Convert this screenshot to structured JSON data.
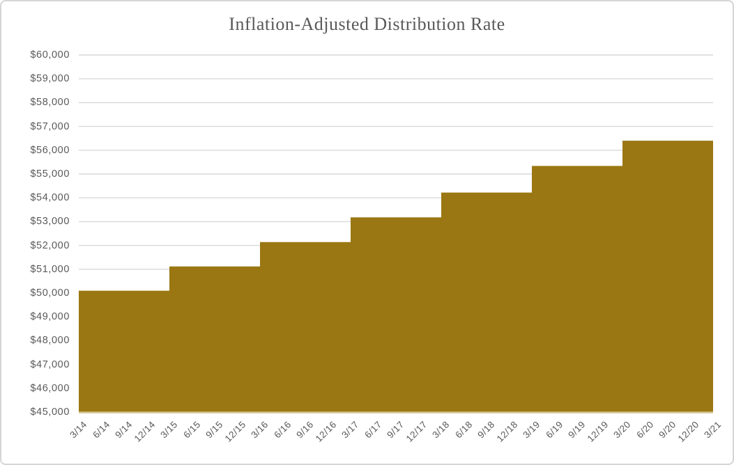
{
  "chart_data": {
    "type": "area",
    "subtype": "step",
    "title": "Inflation-Adjusted Distribution Rate",
    "xlabel": "",
    "ylabel": "",
    "legend": "none",
    "grid": "horizontal",
    "ylim": [
      45000,
      60000
    ],
    "ytick_interval": 1000,
    "yticks": [
      {
        "value": 60000,
        "label": "$60,000"
      },
      {
        "value": 59000,
        "label": "$59,000"
      },
      {
        "value": 58000,
        "label": "$58,000"
      },
      {
        "value": 57000,
        "label": "$57,000"
      },
      {
        "value": 56000,
        "label": "$56,000"
      },
      {
        "value": 55000,
        "label": "$55,000"
      },
      {
        "value": 54000,
        "label": "$54,000"
      },
      {
        "value": 53000,
        "label": "$53,000"
      },
      {
        "value": 52000,
        "label": "$52,000"
      },
      {
        "value": 51000,
        "label": "$51,000"
      },
      {
        "value": 50000,
        "label": "$50,000"
      },
      {
        "value": 49000,
        "label": "$49,000"
      },
      {
        "value": 48000,
        "label": "$48,000"
      },
      {
        "value": 47000,
        "label": "$47,000"
      },
      {
        "value": 46000,
        "label": "$46,000"
      },
      {
        "value": 45000,
        "label": "$45,000"
      }
    ],
    "categories": [
      "3/14",
      "6/14",
      "9/14",
      "12/14",
      "3/15",
      "6/15",
      "9/15",
      "12/15",
      "3/16",
      "6/16",
      "9/16",
      "12/16",
      "3/17",
      "6/17",
      "9/17",
      "12/17",
      "3/18",
      "6/18",
      "9/18",
      "12/18",
      "3/19",
      "6/19",
      "9/19",
      "12/19",
      "3/20",
      "6/20",
      "9/20",
      "12/20",
      "3/21"
    ],
    "series": [
      {
        "name": "Inflation-Adjusted Distribution Rate",
        "values": [
          50100,
          50100,
          50100,
          50100,
          51120,
          51120,
          51120,
          51120,
          52140,
          52140,
          52140,
          52140,
          53180,
          53180,
          53180,
          53180,
          54220,
          54220,
          54220,
          54220,
          55340,
          55340,
          55340,
          55340,
          56400,
          56400,
          56400,
          56400,
          56400
        ]
      }
    ],
    "annual_step_levels": {
      "2014": 50100,
      "2015": 51120,
      "2016": 52140,
      "2017": 53180,
      "2018": 54220,
      "2019": 55340,
      "2020_to_3_21": 56400
    },
    "colors": {
      "area_fill": "#9a7712",
      "gridline": "#d9d9d9",
      "baseline_over_area": "#d3c492",
      "text": "#595959",
      "frame_border": "#d5d5d5",
      "background": "#ffffff"
    }
  }
}
